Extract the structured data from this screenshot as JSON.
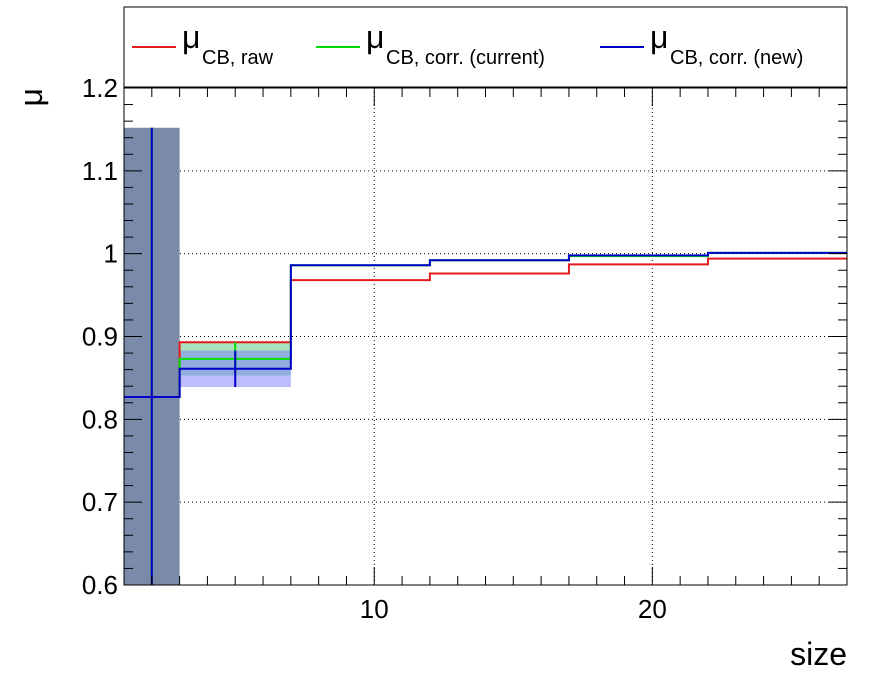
{
  "chart_data": {
    "type": "line",
    "style": "step-histogram",
    "xlabel": "size",
    "ylabel": "μ",
    "xlim": [
      1,
      27
    ],
    "ylim": [
      0.6,
      1.2
    ],
    "x_ticks": [
      10,
      20
    ],
    "y_ticks": [
      0.6,
      0.7,
      0.8,
      0.9,
      1.0,
      1.1,
      1.2
    ],
    "x_tick_labels": [
      "10",
      "20"
    ],
    "y_tick_labels": [
      "0.6",
      "0.7",
      "0.8",
      "0.9",
      "1",
      "1.1",
      "1.2"
    ],
    "grid": true,
    "legend_position": "top",
    "bin_edges": [
      1,
      3,
      7,
      12,
      17,
      22,
      27
    ],
    "series": [
      {
        "name_main": "μ",
        "name_sub": "CB, raw",
        "color": "#e41a1c",
        "values": [
          0.827,
          0.893,
          0.968,
          0.976,
          0.987,
          0.994
        ],
        "errors": [
          0.325,
          0.0,
          0.0,
          0.0,
          0.0,
          0.0
        ]
      },
      {
        "name_main": "μ",
        "name_sub": "CB, corr. (current)",
        "color": "#00dd00",
        "values": [
          0.827,
          0.873,
          0.986,
          0.992,
          0.997,
          1.001
        ],
        "errors": [
          0.325,
          0.02,
          0.0,
          0.0,
          0.0,
          0.0
        ]
      },
      {
        "name_main": "μ",
        "name_sub": "CB, corr. (new)",
        "color": "#0000cc",
        "values": [
          0.827,
          0.861,
          0.986,
          0.992,
          0.998,
          1.001
        ],
        "errors": [
          0.325,
          0.022,
          0.0,
          0.0,
          0.0,
          0.0
        ]
      }
    ]
  }
}
